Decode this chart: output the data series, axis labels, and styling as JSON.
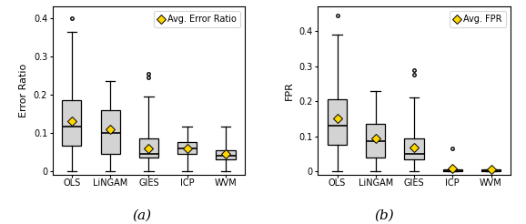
{
  "categories": [
    "OLS",
    "LiNGAM",
    "GIES",
    "ICP",
    "WVM"
  ],
  "plot_a": {
    "ylabel": "Error Ratio",
    "legend_label": "Avg. Error Ratio",
    "ylim": [
      -0.01,
      0.43
    ],
    "yticks": [
      0.0,
      0.1,
      0.2,
      0.3,
      0.4
    ],
    "ytick_labels": [
      "0",
      "0.1",
      "0.2",
      "0.3",
      "0.4"
    ],
    "boxes": [
      {
        "q1": 0.065,
        "median": 0.115,
        "q3": 0.185,
        "whislo": 0.0,
        "whishi": 0.365,
        "fliers": [
          0.4
        ],
        "mean": 0.13
      },
      {
        "q1": 0.045,
        "median": 0.1,
        "q3": 0.16,
        "whislo": 0.0,
        "whishi": 0.235,
        "fliers": [],
        "mean": 0.108
      },
      {
        "q1": 0.035,
        "median": 0.045,
        "q3": 0.085,
        "whislo": 0.0,
        "whishi": 0.195,
        "fliers": [
          0.245,
          0.255
        ],
        "mean": 0.058
      },
      {
        "q1": 0.045,
        "median": 0.06,
        "q3": 0.075,
        "whislo": 0.0,
        "whishi": 0.115,
        "fliers": [],
        "mean": 0.06
      },
      {
        "q1": 0.03,
        "median": 0.04,
        "q3": 0.055,
        "whislo": 0.0,
        "whishi": 0.115,
        "fliers": [],
        "mean": 0.045
      }
    ]
  },
  "plot_b": {
    "ylabel": "FPR",
    "legend_label": "Avg. FPR",
    "ylim": [
      -0.01,
      0.47
    ],
    "yticks": [
      0.0,
      0.1,
      0.2,
      0.3,
      0.4
    ],
    "ytick_labels": [
      "0",
      "0.1",
      "0.2",
      "0.3",
      "0.4"
    ],
    "boxes": [
      {
        "q1": 0.075,
        "median": 0.13,
        "q3": 0.205,
        "whislo": 0.0,
        "whishi": 0.39,
        "fliers": [
          0.445
        ],
        "mean": 0.15
      },
      {
        "q1": 0.04,
        "median": 0.085,
        "q3": 0.135,
        "whislo": 0.0,
        "whishi": 0.23,
        "fliers": [],
        "mean": 0.095
      },
      {
        "q1": 0.035,
        "median": 0.05,
        "q3": 0.095,
        "whislo": 0.0,
        "whishi": 0.21,
        "fliers": [
          0.275,
          0.29
        ],
        "mean": 0.068
      },
      {
        "q1": 0.0,
        "median": 0.0,
        "q3": 0.005,
        "whislo": 0.0,
        "whishi": 0.005,
        "fliers": [
          0.065
        ],
        "mean": 0.008
      },
      {
        "q1": 0.0,
        "median": 0.0,
        "q3": 0.005,
        "whislo": 0.0,
        "whishi": 0.005,
        "fliers": [],
        "mean": 0.005
      }
    ]
  },
  "box_facecolor": "#d3d3d3",
  "box_edgecolor": "#000000",
  "median_color": "#000000",
  "whisker_color": "#000000",
  "cap_color": "#000000",
  "flier_color": "#000000",
  "mean_marker_color": "#ffd700",
  "mean_marker_edge": "#000000",
  "mean_marker": "D",
  "mean_marker_size": 5,
  "subtitle_a": "(a)",
  "subtitle_b": "(b)",
  "subtitle_fontsize": 11,
  "tick_fontsize": 7,
  "label_fontsize": 8,
  "legend_fontsize": 7
}
